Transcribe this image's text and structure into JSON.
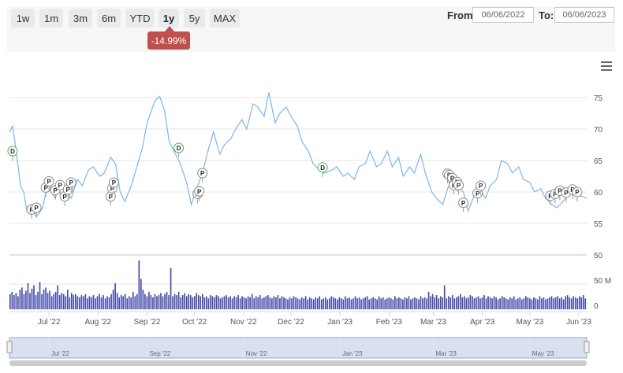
{
  "toolbar": {
    "ranges": [
      "1w",
      "1m",
      "3m",
      "6m",
      "YTD",
      "1y",
      "5y",
      "MAX"
    ],
    "active_range": "1y",
    "change_badge": "-14.99%",
    "from_label": "From:",
    "from_value": "06/06/2022",
    "to_label": "To:",
    "to_value": "06/06/2023"
  },
  "chart_data": {
    "type": "line",
    "price": {
      "ylim": [
        53,
        78
      ],
      "yticks": [
        55,
        60,
        65,
        70,
        75
      ],
      "color": "#7cb5ec",
      "points": [
        [
          "2022-06-06",
          69.5
        ],
        [
          "2022-06-08",
          70.5
        ],
        [
          "2022-06-10",
          67
        ],
        [
          "2022-06-13",
          61
        ],
        [
          "2022-06-15",
          60
        ],
        [
          "2022-06-17",
          57
        ],
        [
          "2022-06-20",
          58
        ],
        [
          "2022-06-23",
          56
        ],
        [
          "2022-06-27",
          57.5
        ],
        [
          "2022-06-30",
          61
        ],
        [
          "2022-07-05",
          59
        ],
        [
          "2022-07-08",
          61.5
        ],
        [
          "2022-07-12",
          60
        ],
        [
          "2022-07-15",
          59
        ],
        [
          "2022-07-19",
          62
        ],
        [
          "2022-07-22",
          61
        ],
        [
          "2022-07-26",
          63.5
        ],
        [
          "2022-07-29",
          64
        ],
        [
          "2022-08-02",
          62.5
        ],
        [
          "2022-08-05",
          63
        ],
        [
          "2022-08-09",
          65.5
        ],
        [
          "2022-08-12",
          64.5
        ],
        [
          "2022-08-15",
          60
        ],
        [
          "2022-08-18",
          58.5
        ],
        [
          "2022-08-22",
          61
        ],
        [
          "2022-08-25",
          63.5
        ],
        [
          "2022-08-29",
          67
        ],
        [
          "2022-09-01",
          71
        ],
        [
          "2022-09-06",
          74.5
        ],
        [
          "2022-09-09",
          75.2
        ],
        [
          "2022-09-12",
          73
        ],
        [
          "2022-09-15",
          68
        ],
        [
          "2022-09-19",
          66
        ],
        [
          "2022-09-22",
          64.5
        ],
        [
          "2022-09-26",
          61.5
        ],
        [
          "2022-09-29",
          58
        ],
        [
          "2022-10-03",
          61
        ],
        [
          "2022-10-06",
          63
        ],
        [
          "2022-10-10",
          67
        ],
        [
          "2022-10-13",
          69.5
        ],
        [
          "2022-10-17",
          66
        ],
        [
          "2022-10-20",
          67.5
        ],
        [
          "2022-10-24",
          68.5
        ],
        [
          "2022-10-27",
          70
        ],
        [
          "2022-10-31",
          71.5
        ],
        [
          "2022-11-03",
          70
        ],
        [
          "2022-11-07",
          74
        ],
        [
          "2022-11-10",
          73.5
        ],
        [
          "2022-11-14",
          72
        ],
        [
          "2022-11-17",
          75.8
        ],
        [
          "2022-11-21",
          71
        ],
        [
          "2022-11-24",
          72.5
        ],
        [
          "2022-11-28",
          73.5
        ],
        [
          "2022-12-01",
          72
        ],
        [
          "2022-12-05",
          70.5
        ],
        [
          "2022-12-08",
          68
        ],
        [
          "2022-12-12",
          66.5
        ],
        [
          "2022-12-15",
          64.5
        ],
        [
          "2022-12-19",
          63.5
        ],
        [
          "2022-12-22",
          63
        ],
        [
          "2022-12-27",
          63.5
        ],
        [
          "2022-12-30",
          64
        ],
        [
          "2023-01-03",
          62.5
        ],
        [
          "2023-01-06",
          63
        ],
        [
          "2023-01-10",
          62
        ],
        [
          "2023-01-13",
          64
        ],
        [
          "2023-01-17",
          64.5
        ],
        [
          "2023-01-20",
          66.5
        ],
        [
          "2023-01-24",
          64
        ],
        [
          "2023-01-27",
          64.5
        ],
        [
          "2023-01-31",
          66.5
        ],
        [
          "2023-02-03",
          64
        ],
        [
          "2023-02-07",
          65.5
        ],
        [
          "2023-02-10",
          62.5
        ],
        [
          "2023-02-14",
          64
        ],
        [
          "2023-02-17",
          63
        ],
        [
          "2023-02-21",
          66
        ],
        [
          "2023-02-24",
          63
        ],
        [
          "2023-02-28",
          60
        ],
        [
          "2023-03-03",
          59
        ],
        [
          "2023-03-07",
          58
        ],
        [
          "2023-03-10",
          60.5
        ],
        [
          "2023-03-13",
          62
        ],
        [
          "2023-03-16",
          61
        ],
        [
          "2023-03-20",
          60
        ],
        [
          "2023-03-23",
          57
        ],
        [
          "2023-03-27",
          59.5
        ],
        [
          "2023-03-30",
          60.5
        ],
        [
          "2023-04-03",
          59
        ],
        [
          "2023-04-06",
          61
        ],
        [
          "2023-04-10",
          62
        ],
        [
          "2023-04-13",
          65
        ],
        [
          "2023-04-17",
          64.5
        ],
        [
          "2023-04-20",
          63
        ],
        [
          "2023-04-24",
          64
        ],
        [
          "2023-04-27",
          62
        ],
        [
          "2023-05-01",
          61.5
        ],
        [
          "2023-05-04",
          60
        ],
        [
          "2023-05-08",
          60.5
        ],
        [
          "2023-05-11",
          59
        ],
        [
          "2023-05-15",
          58
        ],
        [
          "2023-05-18",
          57.5
        ],
        [
          "2023-05-22",
          58.5
        ],
        [
          "2023-05-25",
          59.5
        ],
        [
          "2023-05-29",
          60.5
        ],
        [
          "2023-06-01",
          59.5
        ],
        [
          "2023-06-06",
          59
        ]
      ]
    },
    "volume": {
      "ylim": [
        0,
        50
      ],
      "ytick_labels": [
        "50",
        "50 M",
        "0"
      ],
      "color": "#434aa8",
      "values": [
        14,
        16,
        13,
        15,
        12,
        18,
        20,
        14,
        17,
        24,
        15,
        19,
        22,
        13,
        16,
        25,
        14,
        18,
        20,
        15,
        17,
        12,
        14,
        16,
        22,
        13,
        15,
        14,
        12,
        18,
        11,
        15,
        13,
        14,
        12,
        11,
        13,
        12,
        14,
        10,
        12,
        11,
        13,
        10,
        12,
        14,
        11,
        13,
        10,
        12,
        11,
        14,
        18,
        24,
        15,
        11,
        13,
        12,
        14,
        10,
        12,
        11,
        16,
        12,
        14,
        45,
        28,
        18,
        14,
        12,
        16,
        13,
        11,
        14,
        12,
        13,
        15,
        12,
        14,
        16,
        13,
        38,
        12,
        14,
        13,
        16,
        11,
        13,
        15,
        12,
        14,
        13,
        11,
        12,
        15,
        13,
        12,
        14,
        11,
        12,
        10,
        13,
        12,
        11,
        13,
        12,
        10,
        11,
        12,
        13,
        11,
        12,
        10,
        12,
        11,
        13,
        10,
        12,
        11,
        10,
        12,
        11,
        14,
        10,
        12,
        11,
        13,
        10,
        11,
        12,
        13,
        11,
        10,
        12,
        11,
        13,
        10,
        12,
        11,
        10,
        9,
        11,
        10,
        12,
        11,
        10,
        9,
        11,
        10,
        12,
        9,
        11,
        10,
        9,
        11,
        10,
        12,
        9,
        10,
        11,
        9,
        10,
        12,
        11,
        10,
        9,
        11,
        10,
        9,
        12,
        10,
        11,
        9,
        10,
        12,
        10,
        11,
        9,
        10,
        11,
        12,
        9,
        10,
        11,
        10,
        9,
        12,
        10,
        11,
        9,
        10,
        11,
        10,
        9,
        12,
        10,
        11,
        10,
        9,
        11,
        10,
        12,
        9,
        10,
        11,
        10,
        9,
        12,
        10,
        11,
        10,
        16,
        12,
        14,
        11,
        13,
        10,
        12,
        11,
        22,
        10,
        12,
        11,
        13,
        10,
        11,
        12,
        14,
        11,
        12,
        10,
        11,
        13,
        12,
        10,
        11,
        12,
        10,
        11,
        13,
        10,
        12,
        11,
        10,
        12,
        11,
        9,
        10,
        12,
        11,
        10,
        9,
        11,
        10,
        12,
        9,
        10,
        11,
        9,
        10,
        12,
        11,
        10,
        9,
        11,
        10,
        9,
        12,
        10,
        11,
        9,
        10,
        11,
        12,
        10,
        11,
        12,
        10,
        11,
        9,
        12,
        13,
        11,
        10,
        12,
        11,
        10,
        12,
        11,
        13,
        10
      ]
    },
    "x_ticks": [
      "Jul '22",
      "Aug '22",
      "Sep '22",
      "Oct '22",
      "Nov '22",
      "Dec '22",
      "Jan '23",
      "Feb '23",
      "Mar '23",
      "Apr '23",
      "May '23",
      "Jun '23"
    ],
    "navigator_ticks": [
      "Jul '22",
      "Sep '22",
      "Nov '22",
      "Jan '23",
      "Mar '23",
      "May '23"
    ],
    "flags": [
      {
        "date": "2022-06-08",
        "label": "D",
        "y": 66.5,
        "color": "#4caf50"
      },
      {
        "date": "2022-06-20",
        "label": "P",
        "y": 57.2
      },
      {
        "date": "2022-06-23",
        "label": "P",
        "y": 57.5
      },
      {
        "date": "2022-06-29",
        "label": "P",
        "y": 60.7
      },
      {
        "date": "2022-07-01",
        "label": "P",
        "y": 61.7
      },
      {
        "date": "2022-07-05",
        "label": "P",
        "y": 60.3
      },
      {
        "date": "2022-07-08",
        "label": "P",
        "y": 61.1
      },
      {
        "date": "2022-07-11",
        "label": "P",
        "y": 59.3
      },
      {
        "date": "2022-07-13",
        "label": "P",
        "y": 60.4
      },
      {
        "date": "2022-07-15",
        "label": "P",
        "y": 61.5
      },
      {
        "date": "2022-08-09",
        "label": "P",
        "y": 59.3
      },
      {
        "date": "2022-08-10",
        "label": "P",
        "y": 60.6
      },
      {
        "date": "2022-08-11",
        "label": "P",
        "y": 61.5
      },
      {
        "date": "2022-09-21",
        "label": "D",
        "y": 67.0,
        "color": "#4caf50"
      },
      {
        "date": "2022-10-03",
        "label": "P",
        "y": 59.7
      },
      {
        "date": "2022-10-04",
        "label": "P",
        "y": 60.1
      },
      {
        "date": "2022-10-06",
        "label": "P",
        "y": 63.0
      },
      {
        "date": "2022-12-21",
        "label": "D",
        "y": 63.9,
        "color": "#4caf50"
      },
      {
        "date": "2023-03-10",
        "label": "P",
        "y": 62.9
      },
      {
        "date": "2023-03-11",
        "label": "P",
        "y": 62.7
      },
      {
        "date": "2023-03-13",
        "label": "P",
        "y": 62.2
      },
      {
        "date": "2023-03-14",
        "label": "P",
        "y": 61.1
      },
      {
        "date": "2023-03-16",
        "label": "P",
        "y": 61.6
      },
      {
        "date": "2023-03-17",
        "label": "P",
        "y": 61.1
      },
      {
        "date": "2023-03-20",
        "label": "P",
        "y": 58.3
      },
      {
        "date": "2023-03-29",
        "label": "P",
        "y": 59.8
      },
      {
        "date": "2023-03-31",
        "label": "P",
        "y": 61.0
      },
      {
        "date": "2023-05-14",
        "label": "P",
        "y": 59.4
      },
      {
        "date": "2023-05-17",
        "label": "P",
        "y": 59.7
      },
      {
        "date": "2023-05-20",
        "label": "P",
        "y": 60.2
      },
      {
        "date": "2023-05-24",
        "label": "P",
        "y": 59.9
      },
      {
        "date": "2023-05-28",
        "label": "P",
        "y": 60.4
      },
      {
        "date": "2023-05-31",
        "label": "P",
        "y": 60.0
      }
    ]
  }
}
